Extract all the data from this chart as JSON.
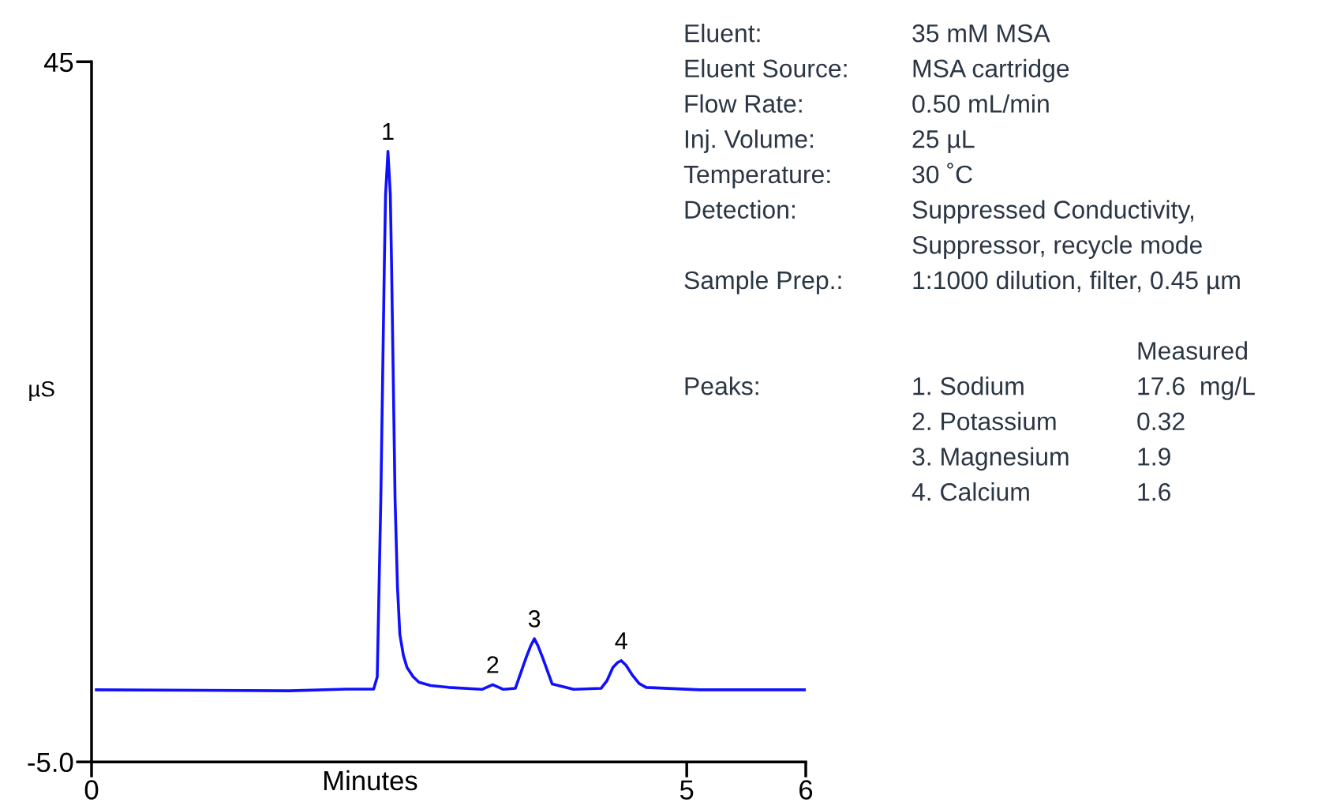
{
  "chart_data": {
    "type": "line",
    "xlabel": "Minutes",
    "ylabel": "µS",
    "xlim": [
      0,
      6
    ],
    "xticks": [
      0,
      5,
      6
    ],
    "ylim": [
      -5,
      45
    ],
    "yticks": [
      {
        "value": -5,
        "label": "-5.0"
      },
      45
    ],
    "grid": false,
    "marker": "none",
    "line_style": "solid",
    "series": [
      {
        "color": "#1010ff",
        "x": [
          0.04,
          1.66,
          2.14,
          2.37,
          2.4,
          2.43,
          2.46,
          2.47,
          2.49,
          2.51,
          2.52,
          2.55,
          2.57,
          2.59,
          2.62,
          2.65,
          2.7,
          2.75,
          2.85,
          3.0,
          3.28,
          3.37,
          3.46,
          3.56,
          3.65,
          3.69,
          3.72,
          3.75,
          3.79,
          3.87,
          4.05,
          4.28,
          4.33,
          4.38,
          4.42,
          4.45,
          4.49,
          4.54,
          4.6,
          4.66,
          5.11,
          6.0
        ],
        "values": [
          0.15,
          0.08,
          0.2,
          0.2,
          1.07,
          13.7,
          30.7,
          35.5,
          38.6,
          35.5,
          30.7,
          13.7,
          7.5,
          4.1,
          2.6,
          1.75,
          1.1,
          0.69,
          0.45,
          0.32,
          0.18,
          0.52,
          0.18,
          0.25,
          2.43,
          3.3,
          3.8,
          3.3,
          2.43,
          0.56,
          0.18,
          0.25,
          0.8,
          1.75,
          2.1,
          2.23,
          1.9,
          1.24,
          0.6,
          0.32,
          0.15,
          0.15
        ]
      }
    ],
    "annotations": [
      {
        "text": "1",
        "x": 2.49,
        "y": 38.6
      },
      {
        "text": "2",
        "x": 3.37,
        "y": 0.52
      },
      {
        "text": "3",
        "x": 3.72,
        "y": 3.8
      },
      {
        "text": "4",
        "x": 4.45,
        "y": 2.23
      },
      "Eluent:\t35 mM MSA",
      "Eluent Source:\tMSA cartridge",
      "Flow Rate:\t0.50 mL/min",
      "Inj. Volume:\t25 µL",
      "Temperature:\t30 ˚C",
      "Detection:\tSuppressed Conductivity,",
      "\tSuppressor, recycle mode",
      "Sample Prep.:\t1:1000 dilution, filter, 0.45 µm",
      "\t\tMeasured",
      "Peaks:\t1. Sodium\t17.6  mg/L",
      "\t2. Potassium\t0.32",
      "\t3. Magnesium\t1.9",
      "\t4. Calcium\t1.6"
    ]
  }
}
